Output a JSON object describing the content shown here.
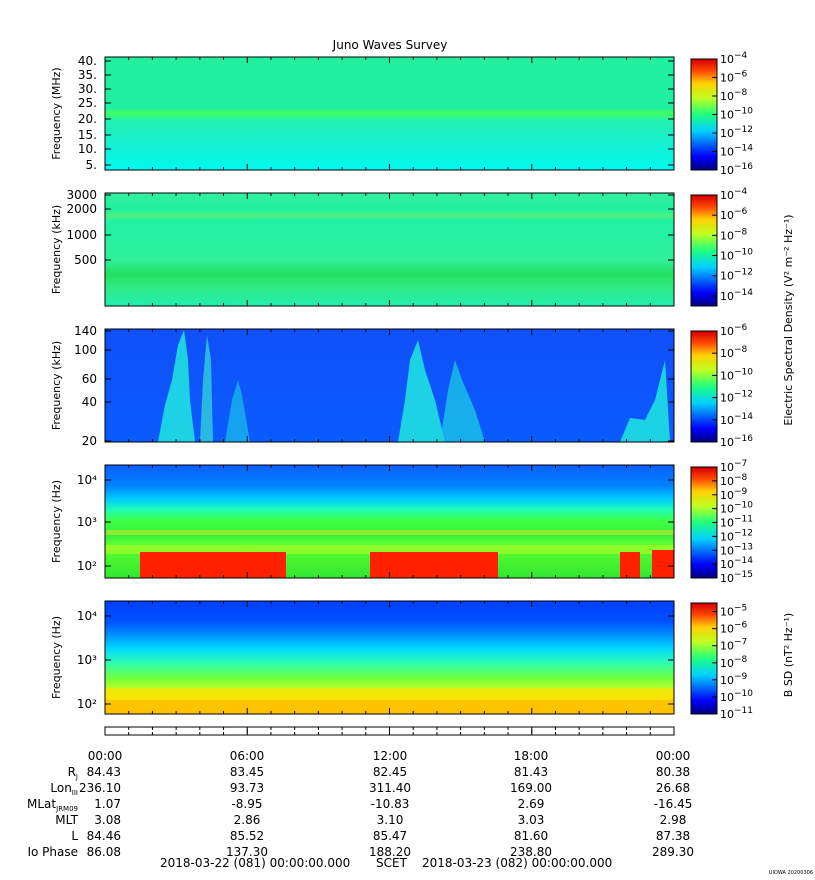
{
  "title": "Juno Waves Survey",
  "footer": {
    "start": "2018-03-22 (081) 00:00:00.000",
    "scet": "SCET",
    "end": "2018-03-23 (082) 00:00:00.000",
    "stamp": "UIOWA 20200306"
  },
  "colorbar_labels": {
    "electric": "Electric Spectral Density (V² m⁻² Hz⁻¹)",
    "magnetic": "B SD (nT² Hz⁻¹)"
  },
  "chart_data": [
    {
      "type": "heatmap",
      "panel": "HFR high",
      "ylabel": "Frequency (MHz)",
      "yticks": [
        "40.",
        "35.",
        "30.",
        "25.",
        "20.",
        "15.",
        "10.",
        "5."
      ],
      "ylim": [
        3,
        41
      ],
      "colorbar": {
        "min_exp": -16,
        "max_exp": -4,
        "tick_exps": [
          -4,
          -6,
          -8,
          -10,
          -12,
          -14,
          -16
        ]
      },
      "description_bands": [
        {
          "freq_MHz": 21,
          "level_exp": -12
        }
      ]
    },
    {
      "type": "heatmap",
      "panel": "HFR low",
      "ylabel": "Frequency (kHz)",
      "yticks": [
        "3000",
        "2000",
        "1000",
        "500"
      ],
      "ylim": [
        140,
        3000
      ],
      "colorbar": {
        "min_exp": -15,
        "max_exp": -4,
        "tick_exps": [
          -4,
          -6,
          -8,
          -10,
          -12,
          -14
        ]
      }
    },
    {
      "type": "heatmap",
      "panel": "LFR high",
      "ylabel": "Frequency (kHz)",
      "yticks": [
        "140",
        "100",
        "60",
        "40",
        "20"
      ],
      "ylim": [
        20,
        140
      ],
      "colorbar": {
        "min_exp": -16,
        "max_exp": -6,
        "tick_exps": [
          -6,
          -8,
          -10,
          -12,
          -14,
          -16
        ]
      }
    },
    {
      "type": "heatmap",
      "panel": "LFR low",
      "ylabel": "Frequency (Hz)",
      "yticks": [
        "10⁴",
        "10³",
        "10²"
      ],
      "ylim": [
        50,
        20000
      ],
      "colorbar": {
        "min_exp": -15,
        "max_exp": -7,
        "tick_exps": [
          -7,
          -8,
          -9,
          -10,
          -11,
          -12,
          -13,
          -14,
          -15
        ]
      }
    },
    {
      "type": "heatmap",
      "panel": "magnetic",
      "ylabel": "Frequency (Hz)",
      "yticks": [
        "10⁴",
        "10³",
        "10²"
      ],
      "ylim": [
        50,
        20000
      ],
      "colorbar": {
        "min_exp": -11,
        "max_exp": -4.5,
        "tick_exps": [
          -5,
          -6,
          -7,
          -8,
          -9,
          -10,
          -11
        ]
      }
    }
  ],
  "x_axis": {
    "ticks": [
      "00:00",
      "06:00",
      "12:00",
      "18:00",
      "00:00"
    ],
    "rows": [
      {
        "label": "R",
        "sub": "J",
        "values": [
          "84.43",
          "83.45",
          "82.45",
          "81.43",
          "80.38"
        ]
      },
      {
        "label": "Lon",
        "sub": "III",
        "values": [
          "236.10",
          "93.73",
          "311.40",
          "169.00",
          "26.68"
        ]
      },
      {
        "label": "MLat",
        "sub": "JRM09",
        "values": [
          "1.07",
          "-8.95",
          "-10.83",
          "2.69",
          "-16.45"
        ]
      },
      {
        "label": "MLT",
        "sub": "",
        "values": [
          "3.08",
          "2.86",
          "3.10",
          "3.03",
          "2.98"
        ]
      },
      {
        "label": "L",
        "sub": "",
        "values": [
          "84.46",
          "85.52",
          "85.47",
          "81.60",
          "87.38"
        ]
      },
      {
        "label": "Io Phase",
        "sub": "",
        "values": [
          "86.08",
          "137.30",
          "188.20",
          "238.80",
          "289.30"
        ]
      }
    ]
  },
  "colors": {
    "jet": [
      "#00007f",
      "#0000ff",
      "#0080ff",
      "#00ffff",
      "#80ff80",
      "#ffff00",
      "#ff8000",
      "#ff0000",
      "#7f0000"
    ]
  }
}
